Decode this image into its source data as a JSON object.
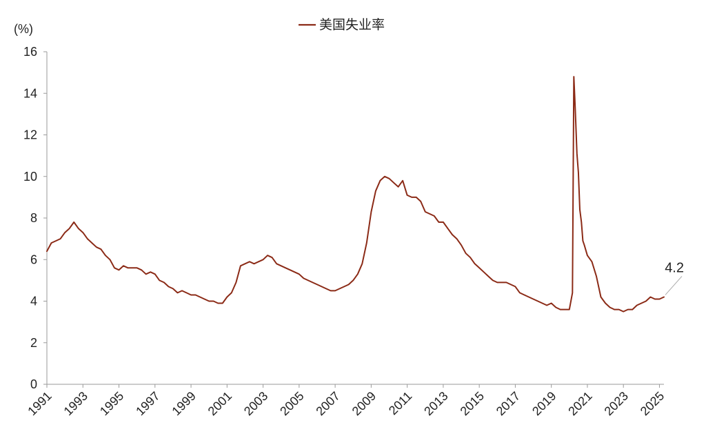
{
  "chart_data": {
    "type": "line",
    "ylabel": "(%)",
    "ylim": [
      0,
      16
    ],
    "y_ticks": [
      "0",
      "2",
      "4",
      "6",
      "8",
      "10",
      "12",
      "14",
      "16"
    ],
    "x_ticks": [
      "1991",
      "1993",
      "1995",
      "1997",
      "1999",
      "2001",
      "2003",
      "2005",
      "2007",
      "2009",
      "2011",
      "2013",
      "2015",
      "2017",
      "2019",
      "2021",
      "2023",
      "2025"
    ],
    "xlim": [
      1991,
      2025.25
    ],
    "grid": false,
    "legend": "top-center",
    "series": [
      {
        "name": "美国失业率",
        "color": "#8B2A16",
        "x": [
          1991.0,
          1991.25,
          1991.5,
          1991.75,
          1992.0,
          1992.25,
          1992.5,
          1992.75,
          1993.0,
          1993.25,
          1993.5,
          1993.75,
          1994.0,
          1994.25,
          1994.5,
          1994.75,
          1995.0,
          1995.25,
          1995.5,
          1995.75,
          1996.0,
          1996.25,
          1996.5,
          1996.75,
          1997.0,
          1997.25,
          1997.5,
          1997.75,
          1998.0,
          1998.25,
          1998.5,
          1998.75,
          1999.0,
          1999.25,
          1999.5,
          1999.75,
          2000.0,
          2000.25,
          2000.5,
          2000.75,
          2001.0,
          2001.25,
          2001.5,
          2001.75,
          2002.0,
          2002.25,
          2002.5,
          2002.75,
          2003.0,
          2003.25,
          2003.5,
          2003.75,
          2004.0,
          2004.25,
          2004.5,
          2004.75,
          2005.0,
          2005.25,
          2005.5,
          2005.75,
          2006.0,
          2006.25,
          2006.5,
          2006.75,
          2007.0,
          2007.25,
          2007.5,
          2007.75,
          2008.0,
          2008.25,
          2008.5,
          2008.75,
          2009.0,
          2009.25,
          2009.5,
          2009.75,
          2010.0,
          2010.25,
          2010.5,
          2010.75,
          2011.0,
          2011.25,
          2011.5,
          2011.75,
          2012.0,
          2012.25,
          2012.5,
          2012.75,
          2013.0,
          2013.25,
          2013.5,
          2013.75,
          2014.0,
          2014.25,
          2014.5,
          2014.75,
          2015.0,
          2015.25,
          2015.5,
          2015.75,
          2016.0,
          2016.25,
          2016.5,
          2016.75,
          2017.0,
          2017.25,
          2017.5,
          2017.75,
          2018.0,
          2018.25,
          2018.5,
          2018.75,
          2019.0,
          2019.25,
          2019.5,
          2019.75,
          2020.0,
          2020.17,
          2020.25,
          2020.33,
          2020.42,
          2020.5,
          2020.58,
          2020.67,
          2020.75,
          2020.83,
          2021.0,
          2021.25,
          2021.5,
          2021.75,
          2022.0,
          2022.25,
          2022.5,
          2022.75,
          2023.0,
          2023.25,
          2023.5,
          2023.75,
          2024.0,
          2024.25,
          2024.5,
          2024.75,
          2025.0,
          2025.25
        ],
        "values": [
          6.4,
          6.8,
          6.9,
          7.0,
          7.3,
          7.5,
          7.8,
          7.5,
          7.3,
          7.0,
          6.8,
          6.6,
          6.5,
          6.2,
          6.0,
          5.6,
          5.5,
          5.7,
          5.6,
          5.6,
          5.6,
          5.5,
          5.3,
          5.4,
          5.3,
          5.0,
          4.9,
          4.7,
          4.6,
          4.4,
          4.5,
          4.4,
          4.3,
          4.3,
          4.2,
          4.1,
          4.0,
          4.0,
          3.9,
          3.9,
          4.2,
          4.4,
          4.9,
          5.7,
          5.8,
          5.9,
          5.8,
          5.9,
          6.0,
          6.2,
          6.1,
          5.8,
          5.7,
          5.6,
          5.5,
          5.4,
          5.3,
          5.1,
          5.0,
          4.9,
          4.8,
          4.7,
          4.6,
          4.5,
          4.5,
          4.6,
          4.7,
          4.8,
          5.0,
          5.3,
          5.8,
          6.8,
          8.3,
          9.3,
          9.8,
          10.0,
          9.9,
          9.7,
          9.5,
          9.8,
          9.1,
          9.0,
          9.0,
          8.8,
          8.3,
          8.2,
          8.1,
          7.8,
          7.8,
          7.5,
          7.2,
          7.0,
          6.7,
          6.3,
          6.1,
          5.8,
          5.6,
          5.4,
          5.2,
          5.0,
          4.9,
          4.9,
          4.9,
          4.8,
          4.7,
          4.4,
          4.3,
          4.2,
          4.1,
          4.0,
          3.9,
          3.8,
          3.9,
          3.7,
          3.6,
          3.6,
          3.6,
          4.4,
          14.8,
          13.2,
          11.1,
          10.2,
          8.4,
          7.8,
          6.9,
          6.7,
          6.2,
          5.9,
          5.2,
          4.2,
          3.9,
          3.7,
          3.6,
          3.6,
          3.5,
          3.6,
          3.6,
          3.8,
          3.9,
          4.0,
          4.2,
          4.1,
          4.1,
          4.2
        ]
      }
    ],
    "annotations": [
      {
        "text": "4.2",
        "x": 2025.25,
        "y": 4.2
      }
    ]
  }
}
